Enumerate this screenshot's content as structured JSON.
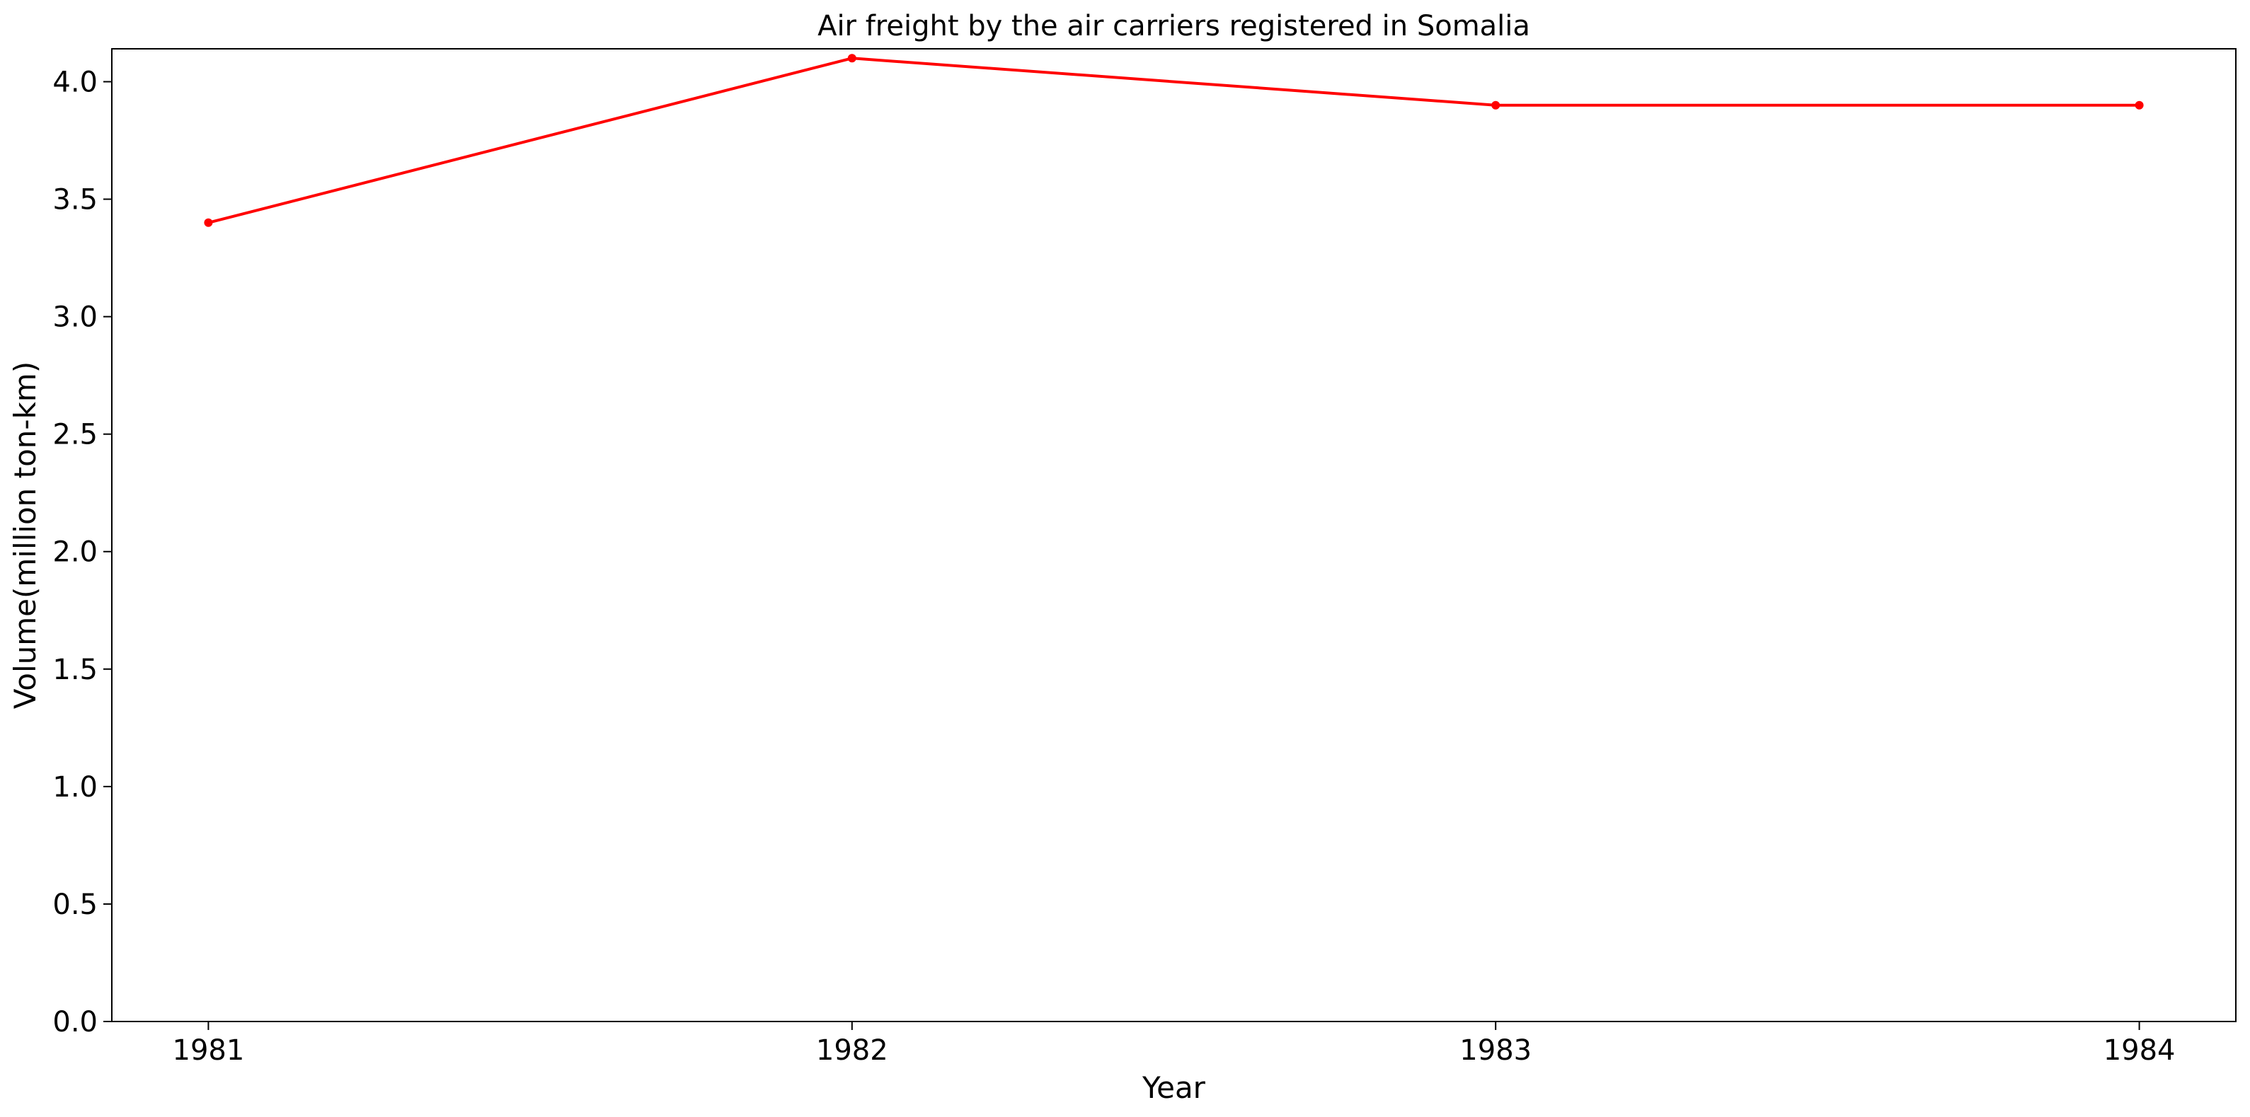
{
  "chart_data": {
    "type": "line",
    "title": "Air freight by the air carriers registered in Somalia",
    "xlabel": "Year",
    "ylabel": "Volume(million ton-km)",
    "x": [
      "1981",
      "1982",
      "1983",
      "1984"
    ],
    "series": [
      {
        "values": [
          3.4,
          4.1,
          3.9,
          3.9
        ]
      }
    ],
    "ylim": [
      0,
      4.14
    ],
    "yticks": [
      0.0,
      0.5,
      1.0,
      1.5,
      2.0,
      2.5,
      3.0,
      3.5,
      4.0
    ],
    "ytick_labels": [
      "0.0",
      "0.5",
      "1.0",
      "1.5",
      "2.0",
      "2.5",
      "3.0",
      "3.5",
      "4.0"
    ],
    "grid": false,
    "line_color": "#ff0000",
    "legend": "none"
  }
}
